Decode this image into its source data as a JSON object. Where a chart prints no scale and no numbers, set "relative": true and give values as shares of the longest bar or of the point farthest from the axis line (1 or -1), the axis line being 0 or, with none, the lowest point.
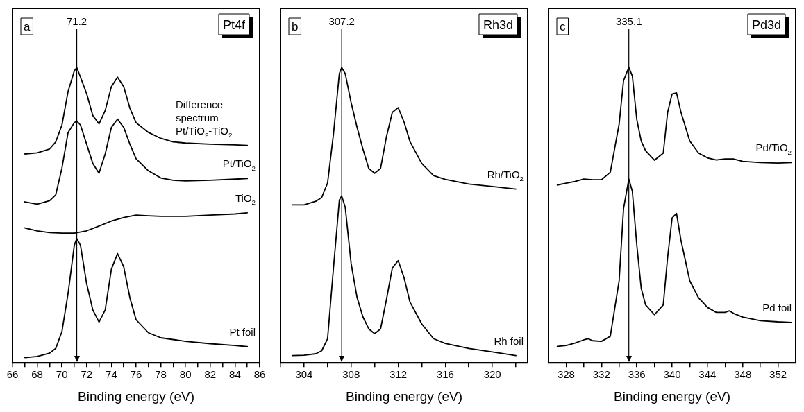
{
  "chart_data": [
    {
      "type": "line",
      "relative": true,
      "legend": false,
      "grid": false,
      "marker": "none",
      "xlabel": "Binding energy (eV)",
      "xlim": [
        66,
        86
      ],
      "xticks": [
        66,
        {
          "value": 67,
          "label": null
        },
        68,
        {
          "value": 69,
          "label": null
        },
        70,
        {
          "value": 71,
          "label": null
        },
        72,
        {
          "value": 73,
          "label": null
        },
        74,
        {
          "value": 75,
          "label": null
        },
        76,
        {
          "value": 77,
          "label": null
        },
        78,
        {
          "value": 79,
          "label": null
        },
        80,
        {
          "value": 81,
          "label": null
        },
        82,
        {
          "value": 83,
          "label": null
        },
        84,
        {
          "value": 85,
          "label": null
        },
        86
      ],
      "annotations": [
        "a",
        "Pt4f"
      ],
      "ref_lines": [
        {
          "axis": "x",
          "value": 71.2,
          "label": "71.2"
        }
      ],
      "series": [
        {
          "name": "Difference spectrum Pt/TiO$_{2}$-TiO$_{2}$",
          "color": "#000000",
          "x": [
            67,
            68,
            69,
            69.5,
            70,
            70.5,
            71,
            71.2,
            71.5,
            72,
            72.5,
            73,
            73.5,
            74,
            74.5,
            75,
            75.5,
            76,
            77,
            78,
            79,
            80,
            82,
            84,
            85
          ],
          "values": [
            0.707,
            0.711,
            0.724,
            0.748,
            0.805,
            0.919,
            0.988,
            1.0,
            0.967,
            0.911,
            0.837,
            0.809,
            0.854,
            0.935,
            0.967,
            0.935,
            0.862,
            0.813,
            0.78,
            0.76,
            0.748,
            0.744,
            0.74,
            0.738,
            0.736
          ]
        },
        {
          "name": "Pt/TiO$_{2}$",
          "color": "#000000",
          "x": [
            67,
            68,
            69,
            69.5,
            70,
            70.5,
            71,
            71.2,
            71.5,
            72,
            72.5,
            73,
            73.5,
            74,
            74.5,
            75,
            75.5,
            76,
            77,
            78,
            79,
            80,
            82,
            84,
            85
          ],
          "values": [
            0.545,
            0.537,
            0.549,
            0.569,
            0.659,
            0.78,
            0.813,
            0.819,
            0.805,
            0.74,
            0.675,
            0.642,
            0.707,
            0.797,
            0.825,
            0.797,
            0.74,
            0.691,
            0.65,
            0.626,
            0.618,
            0.616,
            0.618,
            0.622,
            0.624
          ]
        },
        {
          "name": "TiO$_{2}$",
          "color": "#000000",
          "x": [
            67,
            68,
            69,
            70,
            71,
            72,
            73,
            74,
            75,
            76,
            77,
            78,
            80,
            82,
            84,
            85
          ],
          "values": [
            0.457,
            0.447,
            0.441,
            0.439,
            0.439,
            0.447,
            0.463,
            0.48,
            0.492,
            0.5,
            0.498,
            0.496,
            0.496,
            0.5,
            0.504,
            0.508
          ]
        },
        {
          "name": "Pt foil",
          "color": "#000000",
          "x": [
            67,
            68,
            69,
            69.5,
            70,
            70.5,
            71,
            71.2,
            71.5,
            72,
            72.5,
            73,
            73.5,
            74,
            74.5,
            75,
            75.5,
            76,
            77,
            78,
            80,
            82,
            84,
            85
          ],
          "values": [
            0.018,
            0.022,
            0.033,
            0.049,
            0.106,
            0.236,
            0.398,
            0.421,
            0.398,
            0.268,
            0.179,
            0.138,
            0.179,
            0.317,
            0.37,
            0.325,
            0.22,
            0.146,
            0.102,
            0.085,
            0.073,
            0.065,
            0.059,
            0.055
          ]
        }
      ]
    },
    {
      "type": "line",
      "relative": true,
      "legend": false,
      "grid": false,
      "marker": "none",
      "xlabel": "Binding energy (eV)",
      "xlim": [
        302,
        323
      ],
      "xticks": [
        {
          "value": 302,
          "label": null
        },
        304,
        {
          "value": 306,
          "label": null
        },
        308,
        {
          "value": 310,
          "label": null
        },
        312,
        {
          "value": 314,
          "label": null
        },
        316,
        {
          "value": 318,
          "label": null
        },
        320,
        {
          "value": 322,
          "label": null
        }
      ],
      "annotations": [
        "b",
        "Rh3d"
      ],
      "ref_lines": [
        {
          "axis": "x",
          "value": 307.2,
          "label": "307.2"
        }
      ],
      "series": [
        {
          "name": "Rh/TiO$_{2}$",
          "color": "#000000",
          "x": [
            303,
            304,
            305,
            305.5,
            306,
            306.5,
            307,
            307.2,
            307.5,
            308,
            308.5,
            309,
            309.5,
            310,
            310.5,
            311,
            311.5,
            312,
            312.5,
            313,
            314,
            315,
            316,
            318,
            320,
            322
          ],
          "values": [
            0.535,
            0.535,
            0.547,
            0.56,
            0.609,
            0.774,
            0.979,
            1.0,
            0.979,
            0.881,
            0.798,
            0.724,
            0.658,
            0.642,
            0.658,
            0.765,
            0.848,
            0.864,
            0.815,
            0.749,
            0.675,
            0.634,
            0.621,
            0.605,
            0.597,
            0.588
          ]
        },
        {
          "name": "Rh foil",
          "color": "#000000",
          "x": [
            303,
            304,
            305,
            305.5,
            306,
            306.5,
            307,
            307.2,
            307.5,
            308,
            308.5,
            309,
            309.5,
            310,
            310.5,
            311,
            311.5,
            312,
            312.5,
            313,
            314,
            315,
            316,
            318,
            320,
            322
          ],
          "values": [
            0.025,
            0.026,
            0.031,
            0.041,
            0.082,
            0.321,
            0.551,
            0.565,
            0.527,
            0.337,
            0.222,
            0.156,
            0.115,
            0.099,
            0.115,
            0.214,
            0.321,
            0.346,
            0.288,
            0.206,
            0.132,
            0.082,
            0.066,
            0.049,
            0.037,
            0.025
          ]
        }
      ]
    },
    {
      "type": "line",
      "relative": true,
      "legend": false,
      "grid": false,
      "marker": "none",
      "xlabel": "Binding energy (eV)",
      "xlim": [
        326,
        354
      ],
      "xticks": [
        328,
        {
          "value": 330,
          "label": null
        },
        332,
        {
          "value": 334,
          "label": null
        },
        336,
        {
          "value": 338,
          "label": null
        },
        340,
        {
          "value": 342,
          "label": null
        },
        344,
        {
          "value": 346,
          "label": null
        },
        348,
        {
          "value": 350,
          "label": null
        },
        352
      ],
      "annotations": [
        "c",
        "Pd3d"
      ],
      "ref_lines": [
        {
          "axis": "x",
          "value": 335.1,
          "label": "335.1"
        }
      ],
      "series": [
        {
          "name": "Pd/TiO$_{2}$",
          "color": "#000000",
          "x": [
            327,
            328,
            329,
            330,
            331,
            332,
            333,
            334,
            334.5,
            335.1,
            335.5,
            336,
            336.5,
            337,
            338,
            339,
            339.5,
            340,
            340.5,
            341,
            342,
            343,
            344,
            345,
            346,
            347,
            348,
            350,
            352,
            353.5
          ],
          "values": [
            0.602,
            0.608,
            0.614,
            0.622,
            0.62,
            0.62,
            0.645,
            0.808,
            0.955,
            1.0,
            0.971,
            0.824,
            0.751,
            0.718,
            0.686,
            0.71,
            0.849,
            0.91,
            0.914,
            0.849,
            0.751,
            0.71,
            0.694,
            0.687,
            0.69,
            0.69,
            0.682,
            0.678,
            0.676,
            0.678
          ]
        },
        {
          "name": "Pd foil",
          "color": "#000000",
          "x": [
            327,
            328,
            329,
            330,
            330.5,
            331,
            332,
            333,
            334,
            334.5,
            335.1,
            335.5,
            336,
            336.5,
            337,
            338,
            339,
            339.5,
            340,
            340.5,
            341,
            342,
            343,
            344,
            345,
            346,
            346.5,
            347,
            348,
            350,
            352,
            353.5
          ],
          "values": [
            0.056,
            0.059,
            0.067,
            0.078,
            0.082,
            0.075,
            0.073,
            0.09,
            0.278,
            0.522,
            0.622,
            0.58,
            0.4,
            0.253,
            0.196,
            0.163,
            0.196,
            0.359,
            0.49,
            0.506,
            0.416,
            0.278,
            0.22,
            0.188,
            0.171,
            0.171,
            0.176,
            0.167,
            0.155,
            0.143,
            0.139,
            0.137
          ]
        }
      ]
    }
  ]
}
